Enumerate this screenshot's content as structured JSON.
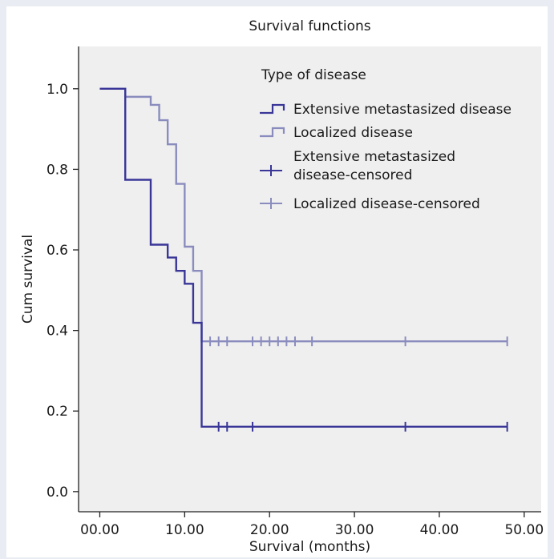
{
  "chart_data": {
    "type": "line",
    "title": "Survival functions",
    "xlabel": "Survival (months)",
    "ylabel": "Cum survival",
    "xlim": [
      -2.5,
      52
    ],
    "ylim": [
      -0.05,
      1.105
    ],
    "x_ticks": [
      0,
      10,
      20,
      30,
      40,
      50
    ],
    "x_tick_labels": [
      "00.00",
      "10.00",
      "20.00",
      "30.00",
      "40.00",
      "50.00"
    ],
    "y_ticks": [
      0,
      0.2,
      0.4,
      0.6,
      0.8,
      1.0
    ],
    "y_tick_labels": [
      "0.0",
      "0.2",
      "0.4",
      "0.6",
      "0.8",
      "1.0"
    ],
    "grid": false,
    "legend": {
      "title": "Type of disease",
      "placement": "top-right",
      "entries": [
        {
          "label": "Extensive metastasized disease",
          "kind": "step"
        },
        {
          "label": "Localized disease",
          "kind": "step"
        },
        {
          "label": "Extensive metastasized disease-censored",
          "label_lines": [
            "Extensive metastasized",
            "disease-censored"
          ],
          "kind": "censor"
        },
        {
          "label": "Localized disease-censored",
          "kind": "censor"
        }
      ]
    },
    "series": [
      {
        "name": "Extensive metastasized disease",
        "color": "#3a3698",
        "steps": [
          [
            0,
            1.0
          ],
          [
            3,
            0.774
          ],
          [
            6,
            0.613
          ],
          [
            8,
            0.581
          ],
          [
            9,
            0.548
          ],
          [
            10,
            0.516
          ],
          [
            11,
            0.419
          ],
          [
            12,
            0.161
          ],
          [
            48,
            0.161
          ]
        ],
        "censored_x": [
          14,
          15,
          18,
          36,
          48
        ]
      },
      {
        "name": "Localized disease",
        "color": "#8a8cbe",
        "steps": [
          [
            0,
            1.0
          ],
          [
            3,
            0.98
          ],
          [
            6,
            0.96
          ],
          [
            7,
            0.922
          ],
          [
            8,
            0.862
          ],
          [
            9,
            0.764
          ],
          [
            10,
            0.608
          ],
          [
            11,
            0.548
          ],
          [
            12,
            0.373
          ],
          [
            48,
            0.373
          ]
        ],
        "censored_x": [
          13,
          14,
          15,
          18,
          19,
          20,
          21,
          22,
          23,
          25,
          36,
          48
        ]
      }
    ],
    "colors": {
      "plot_background": "#efefef",
      "frame_background": "#ffffff",
      "page_background": "#e9ecf3"
    }
  }
}
